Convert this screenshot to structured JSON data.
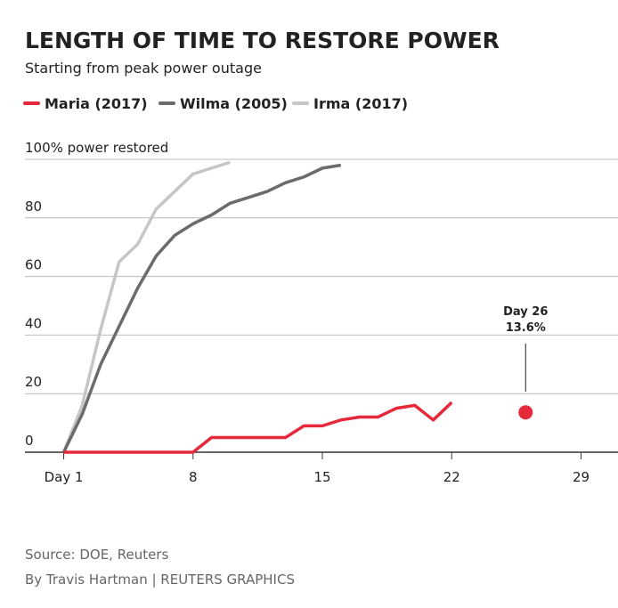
{
  "chart_data": {
    "type": "line",
    "title": "LENGTH OF TIME TO RESTORE POWER",
    "subtitle": "Starting from peak power outage",
    "series": [
      {
        "name": "Maria (2017)",
        "color": "#e5283a",
        "x": [
          1,
          2,
          3,
          4,
          5,
          6,
          7,
          8,
          9,
          10,
          11,
          12,
          13,
          14,
          15,
          16,
          17,
          18,
          19,
          20,
          21,
          22
        ],
        "values": [
          0,
          0,
          0,
          0,
          0,
          0,
          0,
          0,
          5,
          5,
          5,
          5,
          5,
          9,
          9,
          11,
          12,
          12,
          15,
          16,
          11,
          17
        ]
      },
      {
        "name": "Wilma (2005)",
        "color": "#6b6b6b",
        "x": [
          1,
          2,
          3,
          4,
          5,
          6,
          7,
          8,
          9,
          10,
          11,
          12,
          13,
          14,
          15,
          16
        ],
        "values": [
          0,
          13,
          30,
          43,
          56,
          67,
          74,
          78,
          81,
          85,
          87,
          89,
          92,
          94,
          97,
          98
        ]
      },
      {
        "name": "Irma (2017)",
        "color": "#c6c6c6",
        "x": [
          1,
          2,
          3,
          4,
          5,
          6,
          7,
          8,
          9,
          10
        ],
        "values": [
          0,
          16,
          42,
          65,
          71,
          83,
          89,
          95,
          97,
          99
        ]
      }
    ],
    "annotation": {
      "x": 26,
      "value": 13.6,
      "label": "Day 26",
      "value_label": "13.6%",
      "color": "#e5283a"
    },
    "xlim": [
      -1.1,
      31
    ],
    "xticks": [
      {
        "value": 1,
        "label": "Day 1"
      },
      8,
      15,
      22,
      29
    ],
    "ylim": [
      0,
      100
    ],
    "yticks": [
      0,
      20,
      40,
      60,
      80,
      {
        "value": 100,
        "label": "100% power restored"
      }
    ],
    "grid": true,
    "source": "Source: DOE, Reuters",
    "byline": "By Travis Hartman | REUTERS GRAPHICS"
  }
}
